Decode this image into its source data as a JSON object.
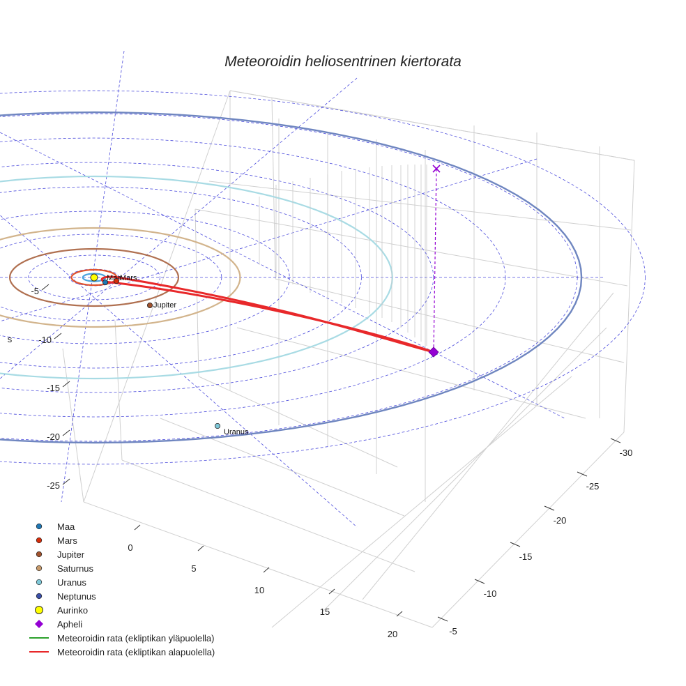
{
  "chart_data": {
    "type": "scatter3d",
    "title": "Meteoroidin heliosentrinen kiertorata",
    "axes": {
      "left_axis": {
        "label": "s",
        "ticks": [
          -5,
          -10,
          -15,
          -20,
          -25
        ]
      },
      "front_axis": {
        "ticks": [
          0,
          5,
          10,
          15,
          20
        ]
      },
      "right_axis": {
        "ticks": [
          -30,
          -25,
          -20,
          -15,
          -10,
          -5
        ]
      }
    },
    "ecliptic_grid": "dashed circles and radial lines in the ecliptic plane",
    "planets": [
      {
        "name": "Maa",
        "color": "#1f77b4",
        "label": "Maa"
      },
      {
        "name": "Mars",
        "color": "#d62d0a",
        "label": "Mars"
      },
      {
        "name": "Jupiter",
        "color": "#a0522d",
        "label": "Jupiter"
      },
      {
        "name": "Saturnus",
        "color": "#c79a6b",
        "label": ""
      },
      {
        "name": "Uranus",
        "color": "#7ec8d8",
        "label": "Uranus"
      },
      {
        "name": "Neptunus",
        "color": "#3a4fa8",
        "label": ""
      }
    ],
    "orbits": [
      {
        "name": "Maa",
        "color": "#4aa3df"
      },
      {
        "name": "Mars",
        "color": "#e0522d"
      },
      {
        "name": "Jupiter",
        "color": "#b07050"
      },
      {
        "name": "Saturnus",
        "color": "#d2b48c"
      },
      {
        "name": "Uranus",
        "color": "#a8dbe4"
      },
      {
        "name": "Neptunus",
        "color": "#6f86c0"
      }
    ],
    "sun": {
      "name": "Aurinko",
      "color": "#ffff00"
    },
    "aphelion": {
      "name": "Apheli",
      "color": "#9400d3"
    },
    "meteoroid_orbit": [
      {
        "name": "Meteoroidin rata (ekliptikan yläpuolella)",
        "color": "#2ca02c"
      },
      {
        "name": "Meteoroidin rata (ekliptikan alapuolella)",
        "color": "#e8282a"
      }
    ],
    "legend_position": "bottom-left"
  },
  "legend": [
    {
      "label": "Maa",
      "marker": "circle",
      "color": "#1f77b4"
    },
    {
      "label": "Mars",
      "marker": "circle",
      "color": "#d62d0a"
    },
    {
      "label": "Jupiter",
      "marker": "circle",
      "color": "#a0522d"
    },
    {
      "label": "Saturnus",
      "marker": "circle",
      "color": "#c79a6b"
    },
    {
      "label": "Uranus",
      "marker": "circle",
      "color": "#7ec8d8"
    },
    {
      "label": "Neptunus",
      "marker": "circle",
      "color": "#3a4fa8"
    },
    {
      "label": "Aurinko",
      "marker": "circle-large",
      "color": "#ffff00"
    },
    {
      "label": "Apheli",
      "marker": "diamond",
      "color": "#9400d3"
    },
    {
      "label": "Meteoroidin rata (ekliptikan yläpuolella)",
      "marker": "line",
      "color": "#2ca02c"
    },
    {
      "label": "Meteoroidin rata (ekliptikan alapuolella)",
      "marker": "line",
      "color": "#e8282a"
    }
  ]
}
